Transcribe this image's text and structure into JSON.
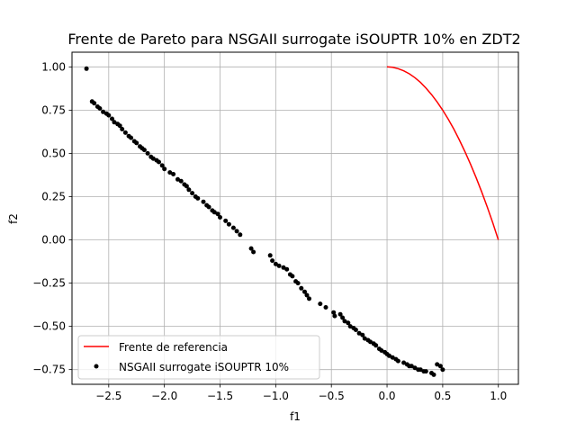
{
  "chart_data": {
    "type": "line+scatter",
    "title": "Frente de Pareto para NSGAII surrogate iSOUPTR 10% en ZDT2",
    "xlabel": "f1",
    "ylabel": "f2",
    "xlim": [
      -2.83,
      1.18
    ],
    "ylim": [
      -0.835,
      1.085
    ],
    "xticks": [
      -2.5,
      -2.0,
      -1.5,
      -1.0,
      -0.5,
      0.0,
      0.5,
      1.0
    ],
    "xtick_labels": [
      "−2.5",
      "−2.0",
      "−1.5",
      "−1.0",
      "−0.5",
      "0.0",
      "0.5",
      "1.0"
    ],
    "yticks": [
      -0.75,
      -0.5,
      -0.25,
      0.0,
      0.25,
      0.5,
      0.75,
      1.0
    ],
    "ytick_labels": [
      "−0.75",
      "−0.50",
      "−0.25",
      "0.00",
      "0.25",
      "0.50",
      "0.75",
      "1.00"
    ],
    "grid": true,
    "legend_position": "lower-left",
    "series": [
      {
        "name": "Frente de referencia",
        "kind": "line",
        "color": "#ff0000",
        "x": [
          0.0,
          0.05,
          0.1,
          0.15,
          0.2,
          0.25,
          0.3,
          0.35,
          0.4,
          0.45,
          0.5,
          0.55,
          0.6,
          0.65,
          0.7,
          0.75,
          0.8,
          0.85,
          0.9,
          0.95,
          1.0
        ],
        "y": [
          1.0,
          0.9975,
          0.99,
          0.9775,
          0.96,
          0.9375,
          0.91,
          0.8775,
          0.84,
          0.7975,
          0.75,
          0.6975,
          0.64,
          0.5775,
          0.51,
          0.4375,
          0.36,
          0.2775,
          0.19,
          0.0975,
          0.0
        ]
      },
      {
        "name": "NSGAII surrogate iSOUPTR 10%",
        "kind": "scatter",
        "color": "#000000",
        "x": [
          -2.7,
          -2.65,
          -2.63,
          -2.6,
          -2.58,
          -2.55,
          -2.52,
          -2.5,
          -2.47,
          -2.45,
          -2.42,
          -2.4,
          -2.38,
          -2.35,
          -2.32,
          -2.3,
          -2.27,
          -2.25,
          -2.22,
          -2.2,
          -2.18,
          -2.15,
          -2.12,
          -2.1,
          -2.07,
          -2.05,
          -2.02,
          -2.0,
          -1.95,
          -1.92,
          -1.88,
          -1.85,
          -1.82,
          -1.8,
          -1.78,
          -1.75,
          -1.72,
          -1.7,
          -1.65,
          -1.62,
          -1.6,
          -1.57,
          -1.55,
          -1.52,
          -1.5,
          -1.45,
          -1.42,
          -1.38,
          -1.35,
          -1.32,
          -1.22,
          -1.2,
          -1.05,
          -1.03,
          -1.0,
          -0.97,
          -0.93,
          -0.9,
          -0.87,
          -0.85,
          -0.82,
          -0.8,
          -0.77,
          -0.74,
          -0.72,
          -0.7,
          -0.6,
          -0.55,
          -0.48,
          -0.47,
          -0.42,
          -0.4,
          -0.38,
          -0.35,
          -0.33,
          -0.3,
          -0.28,
          -0.25,
          -0.22,
          -0.2,
          -0.17,
          -0.15,
          -0.12,
          -0.1,
          -0.07,
          -0.05,
          -0.02,
          0.0,
          0.02,
          0.05,
          0.08,
          0.1,
          0.15,
          0.18,
          0.2,
          0.22,
          0.25,
          0.28,
          0.3,
          0.33,
          0.35,
          0.4,
          0.42,
          0.45,
          0.48,
          0.5
        ],
        "y": [
          0.99,
          0.8,
          0.79,
          0.77,
          0.76,
          0.74,
          0.73,
          0.72,
          0.7,
          0.68,
          0.67,
          0.66,
          0.64,
          0.62,
          0.6,
          0.59,
          0.57,
          0.56,
          0.54,
          0.53,
          0.52,
          0.5,
          0.48,
          0.47,
          0.46,
          0.45,
          0.43,
          0.41,
          0.39,
          0.38,
          0.35,
          0.34,
          0.32,
          0.31,
          0.29,
          0.27,
          0.25,
          0.24,
          0.22,
          0.2,
          0.19,
          0.17,
          0.16,
          0.15,
          0.13,
          0.11,
          0.09,
          0.07,
          0.05,
          0.03,
          -0.05,
          -0.07,
          -0.09,
          -0.12,
          -0.14,
          -0.15,
          -0.16,
          -0.17,
          -0.2,
          -0.21,
          -0.24,
          -0.25,
          -0.28,
          -0.3,
          -0.32,
          -0.34,
          -0.37,
          -0.39,
          -0.42,
          -0.44,
          -0.43,
          -0.45,
          -0.47,
          -0.48,
          -0.5,
          -0.51,
          -0.52,
          -0.54,
          -0.55,
          -0.57,
          -0.58,
          -0.59,
          -0.6,
          -0.61,
          -0.63,
          -0.64,
          -0.65,
          -0.66,
          -0.67,
          -0.68,
          -0.69,
          -0.7,
          -0.71,
          -0.72,
          -0.73,
          -0.73,
          -0.74,
          -0.75,
          -0.75,
          -0.76,
          -0.76,
          -0.77,
          -0.78,
          -0.72,
          -0.73,
          -0.75
        ]
      }
    ]
  }
}
